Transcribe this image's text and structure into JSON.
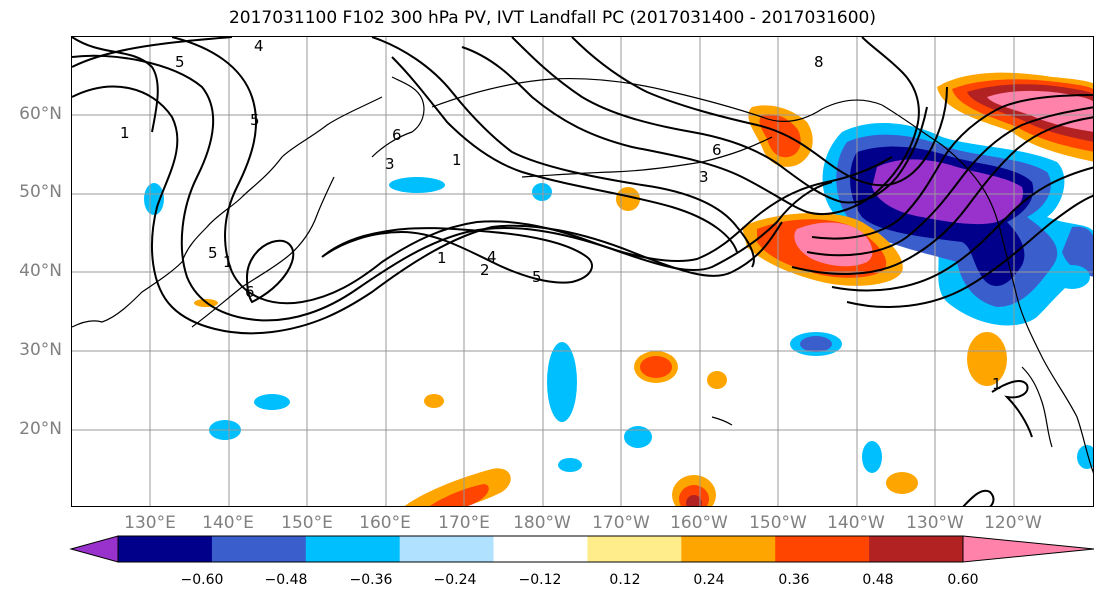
{
  "title": "2017031100 F102 300 hPa PV, IVT Landfall PC (2017031400 - 2017031600)",
  "lat_labels": [
    "60°N",
    "50°N",
    "40°N",
    "30°N",
    "20°N"
  ],
  "lon_labels": [
    "130°E",
    "140°E",
    "150°E",
    "160°E",
    "170°E",
    "180°W",
    "170°W",
    "160°W",
    "150°W",
    "140°W",
    "130°W",
    "120°W"
  ],
  "contour_labels": [
    "4",
    "5",
    "1",
    "5",
    "1",
    "6",
    "5",
    "6",
    "3",
    "1",
    "2",
    "4",
    "1",
    "3",
    "6",
    "5",
    "8",
    "1"
  ],
  "colorbar": {
    "ticks": [
      "−0.60",
      "−0.48",
      "−0.36",
      "−0.24",
      "−0.12",
      "0.12",
      "0.24",
      "0.36",
      "0.48",
      "0.60"
    ],
    "colors": [
      "#9932cc",
      "#00008b",
      "#3a5fcd",
      "#00bfff",
      "#b0e2ff",
      "#ffffff",
      "#ffec8b",
      "#ffa500",
      "#ff4500",
      "#b22222",
      "#ff82ab"
    ]
  }
}
